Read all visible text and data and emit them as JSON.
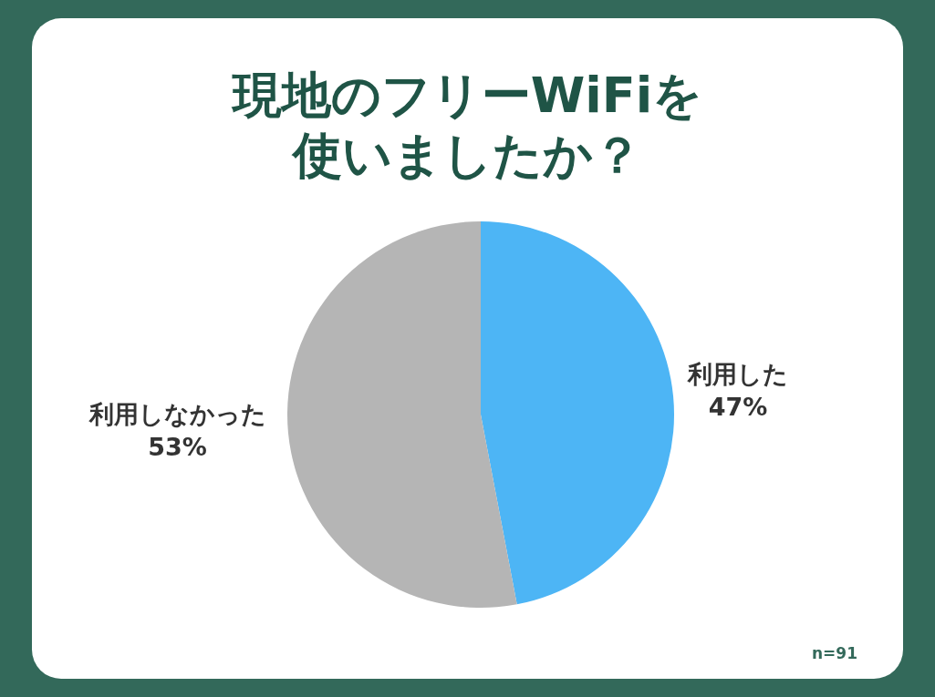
{
  "chart_data": {
    "type": "pie",
    "title": "現地のフリーWiFiを使いましたか？",
    "categories": [
      "利用した",
      "利用しなかった"
    ],
    "values": [
      47,
      53
    ],
    "value_labels": [
      "47%",
      "53%"
    ],
    "colors": [
      "#4db5f5",
      "#b5b5b5"
    ],
    "annotations": [
      "n=91"
    ]
  }
}
